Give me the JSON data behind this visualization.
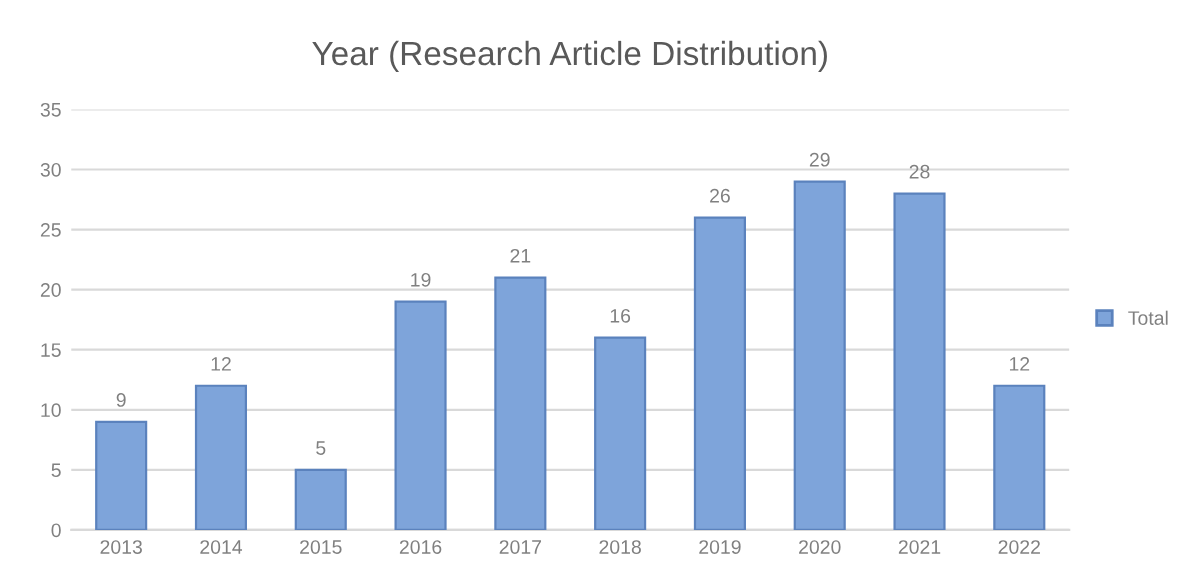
{
  "chart_data": {
    "type": "bar",
    "title": "Year (Research Article Distribution)",
    "categories": [
      "2013",
      "2014",
      "2015",
      "2016",
      "2017",
      "2018",
      "2019",
      "2020",
      "2021",
      "2022"
    ],
    "series": [
      {
        "name": "Total",
        "color": "#7ea4da",
        "values": [
          9,
          12,
          5,
          19,
          21,
          16,
          26,
          29,
          28,
          12
        ]
      }
    ],
    "ylim": [
      0,
      35
    ],
    "yticks": [
      0,
      5,
      10,
      15,
      20,
      25,
      30,
      35
    ],
    "grid": "y",
    "legend": "right",
    "data_labels": true
  }
}
